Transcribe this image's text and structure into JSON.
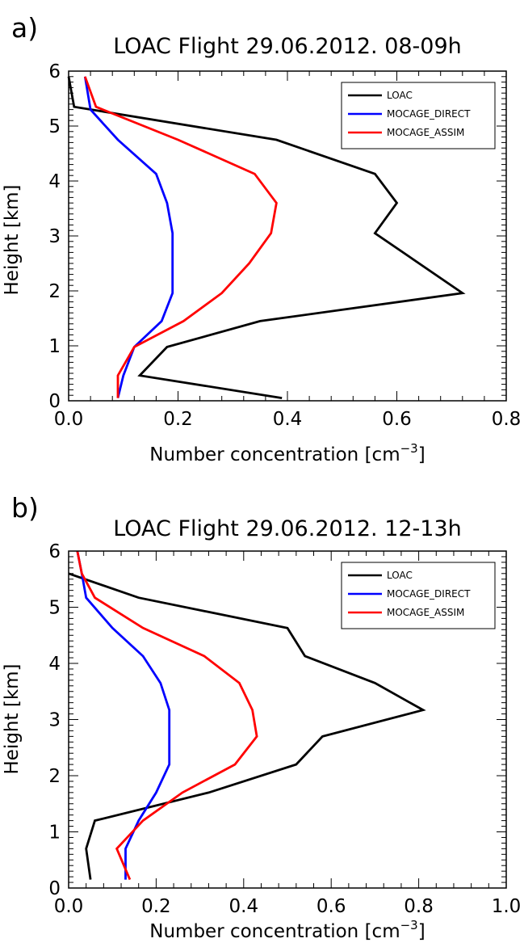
{
  "chart_data": [
    {
      "type": "line",
      "panel_label": "a)",
      "title": "LOAC Flight 29.06.2012. 08-09h",
      "xlabel": "Number concentration [cm",
      "xlabel_sup": "−3",
      "xlabel_end": "]",
      "ylabel": "Height [km]",
      "xlim": [
        0,
        0.8
      ],
      "ylim": [
        0,
        6
      ],
      "xticks": [
        0.0,
        0.2,
        0.4,
        0.6,
        0.8
      ],
      "xtick_labels": [
        "0.0",
        "0.2",
        "0.4",
        "0.6",
        "0.8"
      ],
      "yticks": [
        0,
        1,
        2,
        3,
        4,
        5,
        6
      ],
      "ytick_labels": [
        "0",
        "1",
        "2",
        "3",
        "4",
        "5",
        "6"
      ],
      "legend_position": "top-right",
      "series": [
        {
          "name": "LOAC",
          "color": "#000000",
          "points": [
            [
              0.39,
              0.05
            ],
            [
              0.13,
              0.46
            ],
            [
              0.18,
              0.98
            ],
            [
              0.35,
              1.45
            ],
            [
              0.72,
              1.96
            ],
            [
              0.56,
              3.05
            ],
            [
              0.6,
              3.6
            ],
            [
              0.56,
              4.13
            ],
            [
              0.38,
              4.75
            ],
            [
              0.01,
              5.35
            ],
            [
              0.0,
              5.9
            ]
          ]
        },
        {
          "name": "MOCAGE_DIRECT",
          "color": "#0000ff",
          "points": [
            [
              0.09,
              0.05
            ],
            [
              0.1,
              0.46
            ],
            [
              0.12,
              0.98
            ],
            [
              0.17,
              1.45
            ],
            [
              0.19,
              1.96
            ],
            [
              0.19,
              2.5
            ],
            [
              0.19,
              3.05
            ],
            [
              0.18,
              3.6
            ],
            [
              0.16,
              4.13
            ],
            [
              0.09,
              4.75
            ],
            [
              0.04,
              5.3
            ],
            [
              0.03,
              5.9
            ]
          ]
        },
        {
          "name": "MOCAGE_ASSIM",
          "color": "#ff0000",
          "points": [
            [
              0.09,
              0.05
            ],
            [
              0.09,
              0.46
            ],
            [
              0.12,
              0.98
            ],
            [
              0.21,
              1.45
            ],
            [
              0.28,
              1.96
            ],
            [
              0.33,
              2.5
            ],
            [
              0.37,
              3.05
            ],
            [
              0.38,
              3.6
            ],
            [
              0.34,
              4.13
            ],
            [
              0.2,
              4.75
            ],
            [
              0.05,
              5.35
            ],
            [
              0.03,
              5.9
            ]
          ]
        }
      ]
    },
    {
      "type": "line",
      "panel_label": "b)",
      "title": "LOAC Flight 29.06.2012. 12-13h",
      "xlabel": "Number concentration [cm",
      "xlabel_sup": "−3",
      "xlabel_end": "]",
      "ylabel": "Height [km]",
      "xlim": [
        0,
        1.0
      ],
      "ylim": [
        0,
        6
      ],
      "xticks": [
        0.0,
        0.2,
        0.4,
        0.6,
        0.8,
        1.0
      ],
      "xtick_labels": [
        "0.0",
        "0.2",
        "0.4",
        "0.6",
        "0.8",
        "1.0"
      ],
      "yticks": [
        0,
        1,
        2,
        3,
        4,
        5,
        6
      ],
      "ytick_labels": [
        "0",
        "1",
        "2",
        "3",
        "4",
        "5",
        "6"
      ],
      "legend_position": "top-right",
      "series": [
        {
          "name": "LOAC",
          "color": "#000000",
          "points": [
            [
              0.05,
              0.15
            ],
            [
              0.04,
              0.7
            ],
            [
              0.06,
              1.2
            ],
            [
              0.32,
              1.7
            ],
            [
              0.52,
              2.2
            ],
            [
              0.58,
              2.7
            ],
            [
              0.81,
              3.17
            ],
            [
              0.7,
              3.65
            ],
            [
              0.54,
              4.13
            ],
            [
              0.5,
              4.63
            ],
            [
              0.16,
              5.17
            ],
            [
              0.0,
              5.6
            ]
          ]
        },
        {
          "name": "MOCAGE_DIRECT",
          "color": "#0000ff",
          "points": [
            [
              0.13,
              0.15
            ],
            [
              0.13,
              0.7
            ],
            [
              0.16,
              1.2
            ],
            [
              0.2,
              1.7
            ],
            [
              0.23,
              2.2
            ],
            [
              0.23,
              2.7
            ],
            [
              0.23,
              3.17
            ],
            [
              0.21,
              3.65
            ],
            [
              0.17,
              4.13
            ],
            [
              0.1,
              4.63
            ],
            [
              0.04,
              5.17
            ],
            [
              0.03,
              5.6
            ],
            [
              0.02,
              6.0
            ]
          ]
        },
        {
          "name": "MOCAGE_ASSIM",
          "color": "#ff0000",
          "points": [
            [
              0.14,
              0.15
            ],
            [
              0.11,
              0.7
            ],
            [
              0.17,
              1.2
            ],
            [
              0.26,
              1.7
            ],
            [
              0.38,
              2.2
            ],
            [
              0.43,
              2.7
            ],
            [
              0.42,
              3.17
            ],
            [
              0.39,
              3.65
            ],
            [
              0.31,
              4.13
            ],
            [
              0.17,
              4.63
            ],
            [
              0.06,
              5.17
            ],
            [
              0.03,
              5.6
            ],
            [
              0.02,
              6.0
            ]
          ]
        }
      ]
    }
  ]
}
